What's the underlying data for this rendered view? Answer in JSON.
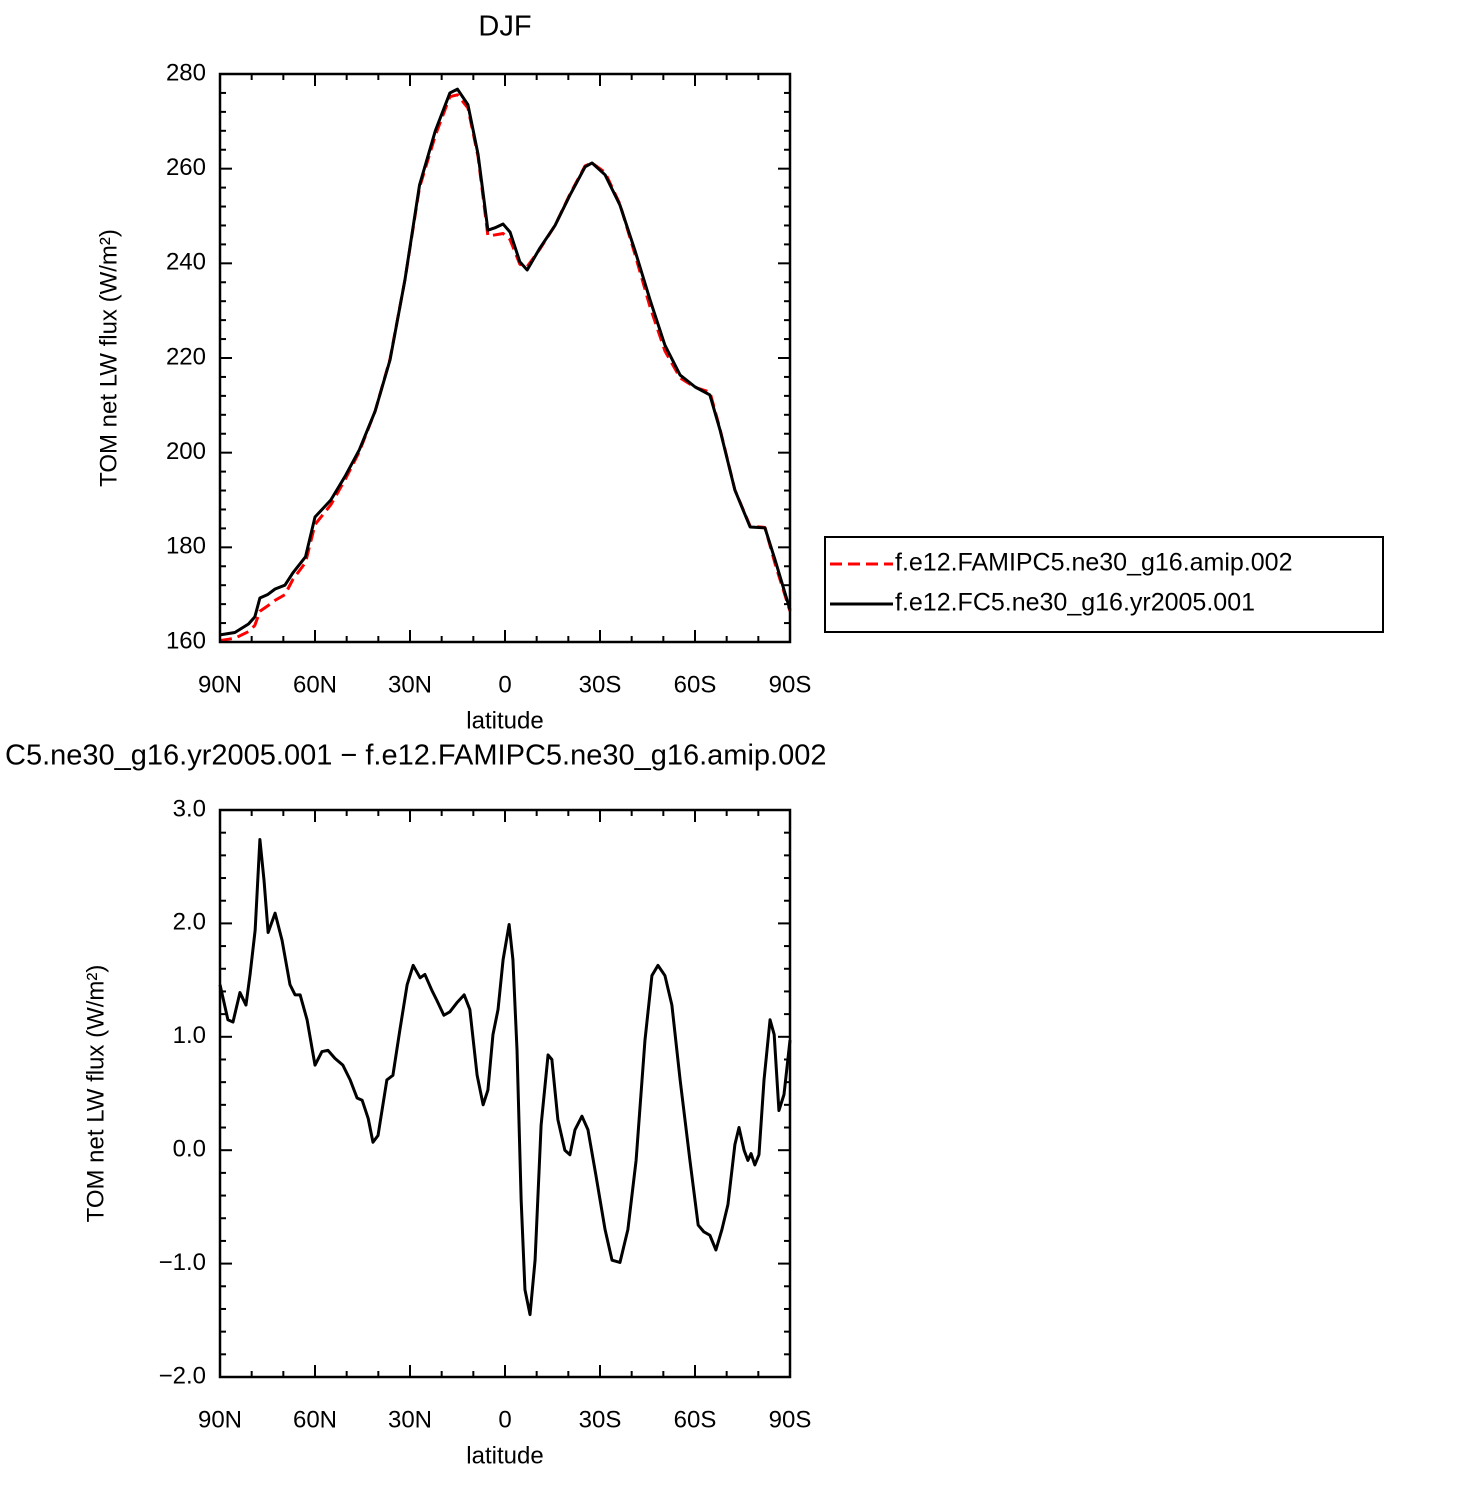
{
  "chart_data": [
    {
      "type": "line",
      "title": "DJF",
      "x_label": "latitude",
      "y_label": "TOM net LW flux (W/m²)",
      "xlim": [
        90,
        -90
      ],
      "ylim": [
        160,
        280
      ],
      "xticks": [
        {
          "value": 90,
          "label": "90N"
        },
        {
          "value": 60,
          "label": "60N"
        },
        {
          "value": 30,
          "label": "30N"
        },
        0,
        {
          "value": -30,
          "label": "30S"
        },
        {
          "value": -60,
          "label": "60S"
        },
        {
          "value": -90,
          "label": "90S"
        }
      ],
      "yticks": [
        160,
        180,
        200,
        220,
        240,
        260,
        280
      ],
      "legend": "right",
      "x": [
        90,
        85.3,
        81,
        79,
        77.4,
        75,
        72.6,
        69.5,
        67,
        63,
        60,
        55,
        50.5,
        46,
        41,
        36.3,
        31.6,
        27,
        22,
        17.4,
        15,
        11.7,
        8.5,
        5.4,
        3.2,
        0.6,
        -1.6,
        -4.7,
        -7,
        -11,
        -15.8,
        -20.5,
        -25.3,
        -27.5,
        -31.6,
        -36.3,
        -41,
        -45.8,
        -50.5,
        -55.3,
        -60,
        -64.7,
        -67.9,
        -72.6,
        -77.4,
        -82.1,
        -85.3,
        -90
      ],
      "series": [
        {
          "name": "f.e12.FAMIPC5.ne30_g16.amip.002",
          "color": "#ff0000",
          "line_style": "dashed",
          "values": [
            160.3,
            160.8,
            162.2,
            163.5,
            166.5,
            167.6,
            168.8,
            170.0,
            173.2,
            176.8,
            184.8,
            189,
            194.3,
            200.2,
            208.8,
            219.8,
            236.5,
            256,
            267,
            275.2,
            275.6,
            272.8,
            262.5,
            245.8,
            246,
            246.3,
            245,
            239.8,
            239.3,
            243,
            248,
            254.6,
            260.6,
            261.2,
            259.2,
            252.5,
            242,
            230.8,
            221.5,
            215.8,
            213.8,
            212.8,
            205,
            192.1,
            184.5,
            184.2,
            176.5,
            166.5
          ]
        },
        {
          "name": "f.e12.FC5.ne30_g16.yr2005.001",
          "color": "#000000",
          "line_style": "solid",
          "values": [
            161.5,
            162,
            163.8,
            165.3,
            169.3,
            170,
            171.2,
            172,
            174.6,
            178,
            186.4,
            190,
            195,
            200.6,
            208.8,
            219.6,
            236.5,
            256.5,
            268,
            276,
            276.8,
            273.5,
            263,
            247,
            247.5,
            248.3,
            246.6,
            240.3,
            238.6,
            243.2,
            248,
            254.4,
            260.4,
            261.2,
            258.7,
            252.3,
            242.8,
            232.3,
            222.7,
            216.4,
            213.9,
            212.2,
            204.8,
            192.1,
            184.3,
            184.1,
            177.3,
            166.8
          ]
        }
      ]
    },
    {
      "type": "line",
      "title": "C5.ne30_g16.yr2005.001 − f.e12.FAMIPC5.ne30_g16.amip.002",
      "x_label": "latitude",
      "y_label": "TOM net LW flux (W/m²)",
      "xlim": [
        90,
        -90
      ],
      "ylim": [
        -2,
        3
      ],
      "xticks": [
        {
          "value": 90,
          "label": "90N"
        },
        {
          "value": 60,
          "label": "60N"
        },
        {
          "value": 30,
          "label": "30N"
        },
        0,
        {
          "value": -30,
          "label": "30S"
        },
        {
          "value": -60,
          "label": "60S"
        },
        {
          "value": -90,
          "label": "90S"
        }
      ],
      "yticks": [
        {
          "value": -2,
          "label": "−2.0"
        },
        {
          "value": -1,
          "label": "−1.0"
        },
        {
          "value": 0,
          "label": "0.0"
        },
        {
          "value": 1,
          "label": "1.0"
        },
        {
          "value": 2,
          "label": "2.0"
        },
        {
          "value": 3,
          "label": "3.0"
        }
      ],
      "x": [
        90,
        87.5,
        85.9,
        83.7,
        81.8,
        80.5,
        78.9,
        77.4,
        76.1,
        74.8,
        72.6,
        70.4,
        67.9,
        66.3,
        64.7,
        62.5,
        60,
        57.8,
        55.9,
        53.7,
        51.2,
        48.9,
        46.7,
        45.1,
        43.2,
        41.7,
        40.1,
        37.3,
        35.4,
        33.2,
        30.9,
        29,
        26.8,
        25.3,
        23.1,
        21.5,
        19.3,
        17.4,
        15.2,
        12.9,
        11.1,
        8.8,
        6.9,
        5.4,
        3.8,
        2.2,
        0.6,
        -1.3,
        -2.5,
        -3.8,
        -5.1,
        -6.3,
        -7.9,
        -9.5,
        -11.4,
        -13.6,
        -14.8,
        -16.7,
        -18.9,
        -20.5,
        -22.1,
        -24.3,
        -26.2,
        -28.7,
        -31.6,
        -33.8,
        -36.3,
        -38.8,
        -41.4,
        -44.2,
        -46.4,
        -48.3,
        -50.5,
        -52.7,
        -55.3,
        -58.4,
        -61,
        -62.8,
        -64.7,
        -66.6,
        -68.5,
        -70.4,
        -72.6,
        -73.9,
        -75.5,
        -76.7,
        -77.7,
        -78.9,
        -80.2,
        -81.8,
        -83.7,
        -85,
        -86.5,
        -88.1,
        -90
      ],
      "series": [
        {
          "color": "#000000",
          "line_style": "solid",
          "values": [
            1.46,
            1.15,
            1.13,
            1.39,
            1.28,
            1.55,
            1.94,
            2.74,
            2.38,
            1.92,
            2.09,
            1.85,
            1.46,
            1.37,
            1.37,
            1.15,
            0.75,
            0.87,
            0.88,
            0.81,
            0.75,
            0.62,
            0.46,
            0.44,
            0.28,
            0.07,
            0.13,
            0.62,
            0.66,
            1.06,
            1.46,
            1.63,
            1.52,
            1.55,
            1.41,
            1.32,
            1.19,
            1.22,
            1.3,
            1.37,
            1.24,
            0.66,
            0.4,
            0.53,
            1.02,
            1.24,
            1.68,
            1.99,
            1.68,
            0.88,
            -0.44,
            -1.23,
            -1.45,
            -0.97,
            0.22,
            0.84,
            0.8,
            0.27,
            0.0,
            -0.04,
            0.18,
            0.3,
            0.18,
            -0.22,
            -0.7,
            -0.97,
            -0.99,
            -0.7,
            -0.09,
            0.97,
            1.54,
            1.63,
            1.54,
            1.28,
            0.62,
            -0.09,
            -0.66,
            -0.72,
            -0.75,
            -0.88,
            -0.7,
            -0.48,
            0.05,
            0.2,
            0.0,
            -0.09,
            -0.03,
            -0.13,
            -0.04,
            0.62,
            1.15,
            1.02,
            0.35,
            0.49,
            0.97
          ]
        }
      ]
    }
  ]
}
